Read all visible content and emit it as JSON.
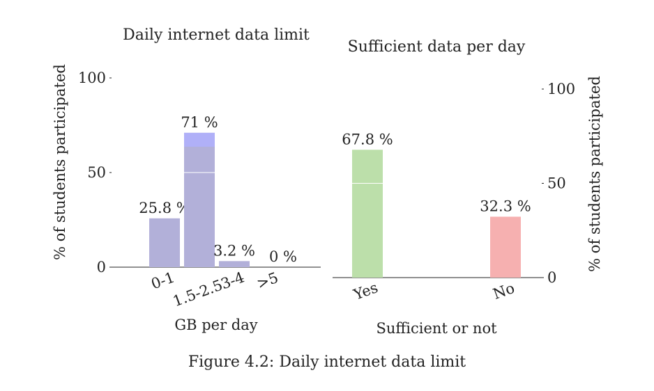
{
  "caption": "Figure 4.2: Daily internet data limit",
  "chart_data": [
    {
      "type": "bar",
      "title": "Daily internet data limit",
      "xlabel": "GB per day",
      "ylabel": "% of students participated",
      "categories": [
        "0-1",
        "1.5-2.5",
        "3-4",
        ">5"
      ],
      "values": [
        25.8,
        71,
        3.2,
        0
      ],
      "value_labels": [
        "25.8 %",
        "71 %",
        "3.2 %",
        "0 %"
      ],
      "yticks": [
        0,
        50,
        100
      ],
      "ylim": [
        0,
        100
      ],
      "colors": [
        "#b2b0d9",
        "#b2b0d9",
        "#b2b0d9",
        "#b2b0d9"
      ],
      "highlight_color": "#b0b0f8",
      "legend": "none",
      "grid": false
    },
    {
      "type": "bar",
      "title": "Sufficient data per day",
      "xlabel": "Sufficient or not",
      "ylabel": "% of students participated",
      "categories": [
        "Yes",
        "No"
      ],
      "values": [
        67.8,
        32.3
      ],
      "value_labels": [
        "67.8 %",
        "32.3 %"
      ],
      "yticks": [
        0,
        50,
        100
      ],
      "ylim": [
        0,
        100
      ],
      "yaxis_side": "right",
      "colors": [
        "#bcdfaa",
        "#f6b0b0"
      ],
      "legend": "none",
      "grid": false
    }
  ]
}
